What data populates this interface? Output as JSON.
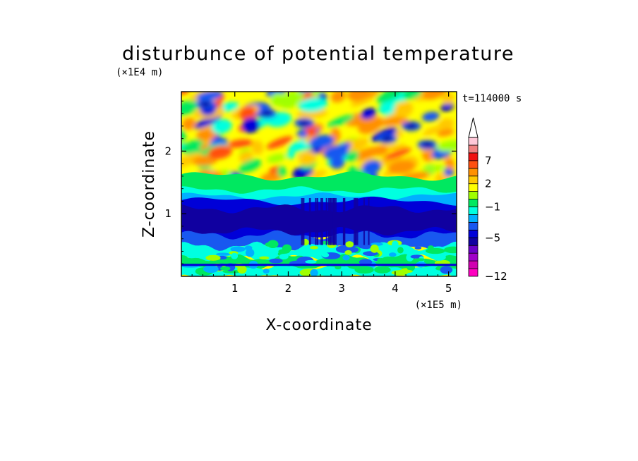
{
  "chart_data": {
    "type": "heatmap",
    "title": "disturbunce of potential temperature",
    "xlabel": "X-coordinate",
    "ylabel": "Z-coordinate",
    "x_scale_label": "(×1E5 m)",
    "y_scale_label": "(×1E4 m)",
    "time_label": "t=114000 s",
    "xlim": [
      0,
      5.15
    ],
    "ylim": [
      0,
      2.95
    ],
    "x_ticks": [
      "1",
      "2",
      "3",
      "4",
      "5"
    ],
    "x_tick_values": [
      1,
      2,
      3,
      4,
      5
    ],
    "y_ticks": [
      "1",
      "2"
    ],
    "y_tick_values": [
      1,
      2
    ],
    "grid": false,
    "colorbar": {
      "position": "right",
      "extend": "max",
      "labels": [
        "7",
        "2",
        "−1",
        "−5",
        "−12"
      ],
      "label_values": [
        7,
        2,
        -1,
        -5,
        -12
      ],
      "levels": [
        -12,
        -11,
        -10,
        -8,
        -6,
        -5,
        -4,
        -3,
        -2,
        -1,
        0,
        1,
        2,
        3,
        5,
        7,
        9,
        11
      ],
      "colors": [
        "#ff00c0",
        "#d000b0",
        "#a000c8",
        "#6a00c8",
        "#1000a0",
        "#0000d8",
        "#1858f0",
        "#00b0ff",
        "#00ffe0",
        "#00e860",
        "#a0ff00",
        "#ffff00",
        "#ffc800",
        "#ff9000",
        "#ff5010",
        "#f01010",
        "#f08080",
        "#ffc8d8"
      ]
    },
    "z_description": "disturbance of potential temperature; near zero to positive (yellow/orange) above ~1.6E4 m, strongly negative (blue) band between ~0.6E4 and ~1.3E4 m, mixed values below"
  }
}
